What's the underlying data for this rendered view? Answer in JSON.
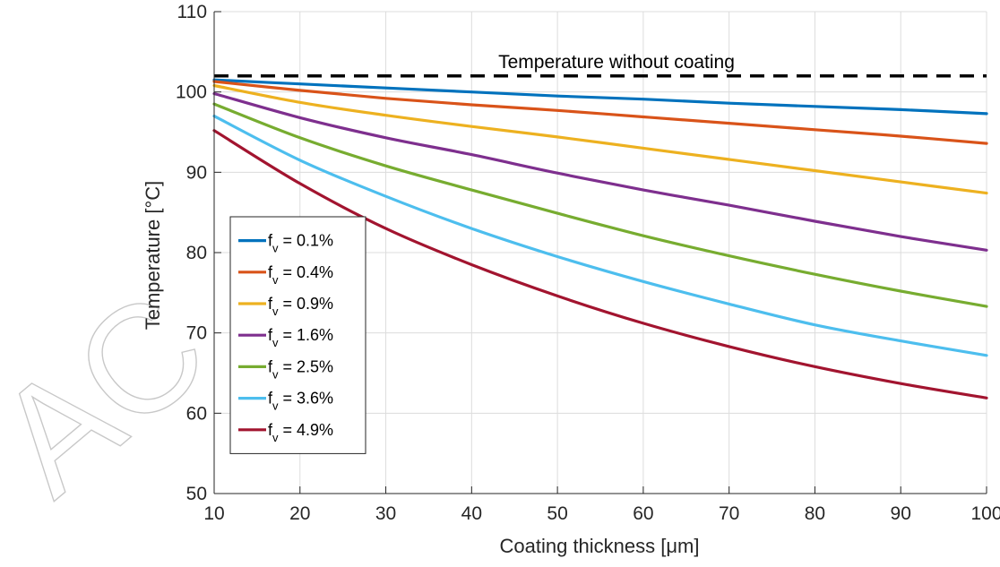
{
  "chart_data": {
    "type": "line",
    "xlabel": "Coating thickness [μm]",
    "ylabel": "Temperature [°C]",
    "xlim": [
      10,
      100
    ],
    "ylim": [
      50,
      110
    ],
    "xticks": [
      10,
      20,
      30,
      40,
      50,
      60,
      70,
      80,
      90,
      100
    ],
    "yticks": [
      50,
      60,
      70,
      80,
      90,
      100,
      110
    ],
    "grid": true,
    "legend_position": "bottom-left",
    "x": [
      10,
      20,
      30,
      40,
      50,
      60,
      70,
      80,
      90,
      100
    ],
    "series": [
      {
        "name": "f_v = 0.1%",
        "legend_main": "f",
        "legend_sub": "v",
        "legend_rest": " = 0.1%",
        "color": "#0072BD",
        "values": [
          101.5,
          101.0,
          100.5,
          100.0,
          99.5,
          99.1,
          98.6,
          98.2,
          97.8,
          97.3
        ]
      },
      {
        "name": "f_v = 0.4%",
        "legend_main": "f",
        "legend_sub": "v",
        "legend_rest": " = 0.4%",
        "color": "#D95319",
        "values": [
          101.3,
          100.2,
          99.2,
          98.4,
          97.7,
          96.9,
          96.1,
          95.3,
          94.5,
          93.6
        ]
      },
      {
        "name": "f_v = 0.9%",
        "legend_main": "f",
        "legend_sub": "v",
        "legend_rest": " = 0.9%",
        "color": "#EDB120",
        "values": [
          100.8,
          98.7,
          97.1,
          95.7,
          94.4,
          93.0,
          91.6,
          90.2,
          88.8,
          87.4
        ]
      },
      {
        "name": "f_v = 1.6%",
        "legend_main": "f",
        "legend_sub": "v",
        "legend_rest": " = 1.6%",
        "color": "#7E2F8E",
        "values": [
          99.8,
          96.8,
          94.3,
          92.2,
          89.9,
          87.8,
          85.9,
          83.9,
          82.0,
          80.3
        ]
      },
      {
        "name": "f_v = 2.5%",
        "legend_main": "f",
        "legend_sub": "v",
        "legend_rest": " = 2.5%",
        "color": "#77AC30",
        "values": [
          98.5,
          94.3,
          90.8,
          87.8,
          84.9,
          82.1,
          79.6,
          77.3,
          75.2,
          73.3
        ]
      },
      {
        "name": "f_v = 3.6%",
        "legend_main": "f",
        "legend_sub": "v",
        "legend_rest": " = 3.6%",
        "color": "#4DBEEE",
        "values": [
          97.0,
          91.5,
          87.0,
          83.0,
          79.5,
          76.4,
          73.6,
          71.0,
          69.0,
          67.2
        ]
      },
      {
        "name": "f_v = 4.9%",
        "legend_main": "f",
        "legend_sub": "v",
        "legend_rest": " = 4.9%",
        "color": "#A2142F",
        "values": [
          95.2,
          88.6,
          83.0,
          78.5,
          74.6,
          71.2,
          68.3,
          65.8,
          63.7,
          61.9
        ]
      }
    ],
    "reference_line": {
      "label": "Temperature without coating",
      "y": 102,
      "color": "#000000",
      "style": "dashed"
    }
  },
  "watermark": {
    "text": "AC"
  }
}
